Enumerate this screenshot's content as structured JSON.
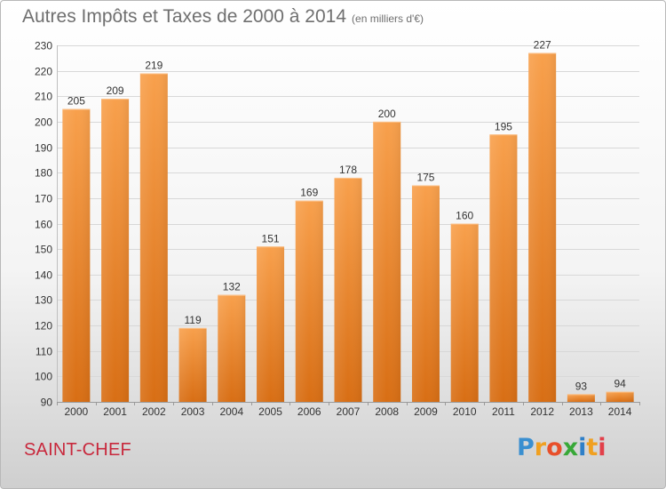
{
  "title": {
    "main": "Autres Impôts et Taxes de 2000 à 2014",
    "unit": "(en milliers d'€)"
  },
  "footer": {
    "city": "SAINT-CHEF"
  },
  "logo": {
    "text": "Proxiti",
    "p": "P",
    "r": "r",
    "o": "o",
    "x": "x",
    "i1": "i",
    "t": "t",
    "i2": "i"
  },
  "colors": {
    "bar_top": "#f8a04c",
    "bar_bottom": "#d86e14",
    "grid": "#d8d8d8",
    "axis_text": "#333333",
    "city": "#c8283c"
  },
  "chart_data": {
    "type": "bar",
    "title": "Autres Impôts et Taxes de 2000 à 2014",
    "xlabel": "",
    "ylabel": "",
    "categories": [
      "2000",
      "2001",
      "2002",
      "2003",
      "2004",
      "2005",
      "2006",
      "2007",
      "2008",
      "2009",
      "2010",
      "2011",
      "2012",
      "2013",
      "2014"
    ],
    "values": [
      205,
      209,
      219,
      119,
      132,
      151,
      169,
      178,
      200,
      175,
      160,
      195,
      227,
      93,
      94
    ],
    "ylim": [
      90,
      230
    ],
    "yticks": [
      90,
      100,
      110,
      120,
      130,
      140,
      150,
      160,
      170,
      180,
      190,
      200,
      210,
      220,
      230
    ],
    "grid": true
  }
}
